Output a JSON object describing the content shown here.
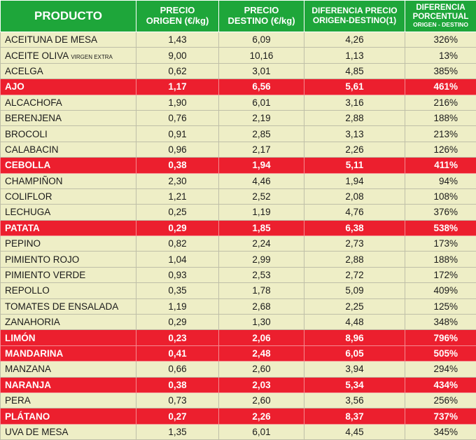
{
  "headers": {
    "producto": "PRODUCTO",
    "origen_l1": "PRECIO",
    "origen_l2": "ORIGEN (€/kg)",
    "destino_l1": "PRECIO",
    "destino_l2": "DESTINO (€/kg)",
    "diferencia_l1": "DIFERENCIA PRECIO",
    "diferencia_l2": "ORIGEN-DESTINO(1)",
    "porcentual_l1": "DIFERENCIA",
    "porcentual_l2": "PORCENTUAL",
    "porcentual_l3": "ORIGEN - DESTINO"
  },
  "highlight_color": "#ec1f2e",
  "header_color": "#1ea63a",
  "row_color": "#eeeec6",
  "rows": [
    {
      "producto": "ACEITUNA DE MESA",
      "sub": "",
      "origen": "1,43",
      "destino": "6,09",
      "diferencia": "4,26",
      "porcentual": "326%",
      "highlight": false
    },
    {
      "producto": "ACEITE OLIVA",
      "sub": "VIRGEN EXTRA",
      "origen": "9,00",
      "destino": "10,16",
      "diferencia": "1,13",
      "porcentual": "13%",
      "highlight": false
    },
    {
      "producto": "ACELGA",
      "sub": "",
      "origen": "0,62",
      "destino": "3,01",
      "diferencia": "4,85",
      "porcentual": "385%",
      "highlight": false
    },
    {
      "producto": "AJO",
      "sub": "",
      "origen": "1,17",
      "destino": "6,56",
      "diferencia": "5,61",
      "porcentual": "461%",
      "highlight": true
    },
    {
      "producto": "ALCACHOFA",
      "sub": "",
      "origen": "1,90",
      "destino": "6,01",
      "diferencia": "3,16",
      "porcentual": "216%",
      "highlight": false
    },
    {
      "producto": "BERENJENA",
      "sub": "",
      "origen": "0,76",
      "destino": "2,19",
      "diferencia": "2,88",
      "porcentual": "188%",
      "highlight": false
    },
    {
      "producto": "BROCOLI",
      "sub": "",
      "origen": "0,91",
      "destino": "2,85",
      "diferencia": "3,13",
      "porcentual": "213%",
      "highlight": false
    },
    {
      "producto": "CALABACIN",
      "sub": "",
      "origen": "0,96",
      "destino": "2,17",
      "diferencia": "2,26",
      "porcentual": "126%",
      "highlight": false
    },
    {
      "producto": "CEBOLLA",
      "sub": "",
      "origen": "0,38",
      "destino": "1,94",
      "diferencia": "5,11",
      "porcentual": "411%",
      "highlight": true
    },
    {
      "producto": "CHAMPIÑON",
      "sub": "",
      "origen": "2,30",
      "destino": "4,46",
      "diferencia": "1,94",
      "porcentual": "94%",
      "highlight": false
    },
    {
      "producto": "COLIFLOR",
      "sub": "",
      "origen": "1,21",
      "destino": "2,52",
      "diferencia": "2,08",
      "porcentual": "108%",
      "highlight": false
    },
    {
      "producto": "LECHUGA",
      "sub": "",
      "origen": "0,25",
      "destino": "1,19",
      "diferencia": "4,76",
      "porcentual": "376%",
      "highlight": false
    },
    {
      "producto": "PATATA",
      "sub": "",
      "origen": "0,29",
      "destino": "1,85",
      "diferencia": "6,38",
      "porcentual": "538%",
      "highlight": true
    },
    {
      "producto": "PEPINO",
      "sub": "",
      "origen": "0,82",
      "destino": "2,24",
      "diferencia": "2,73",
      "porcentual": "173%",
      "highlight": false
    },
    {
      "producto": "PIMIENTO ROJO",
      "sub": "",
      "origen": "1,04",
      "destino": "2,99",
      "diferencia": "2,88",
      "porcentual": "188%",
      "highlight": false
    },
    {
      "producto": "PIMIENTO VERDE",
      "sub": "",
      "origen": "0,93",
      "destino": "2,53",
      "diferencia": "2,72",
      "porcentual": "172%",
      "highlight": false
    },
    {
      "producto": "REPOLLO",
      "sub": "",
      "origen": "0,35",
      "destino": "1,78",
      "diferencia": "5,09",
      "porcentual": "409%",
      "highlight": false
    },
    {
      "producto": "TOMATES DE ENSALADA",
      "sub": "",
      "origen": "1,19",
      "destino": "2,68",
      "diferencia": "2,25",
      "porcentual": "125%",
      "highlight": false
    },
    {
      "producto": "ZANAHORIA",
      "sub": "",
      "origen": "0,29",
      "destino": "1,30",
      "diferencia": "4,48",
      "porcentual": "348%",
      "highlight": false
    },
    {
      "producto": "LIMÓN",
      "sub": "",
      "origen": "0,23",
      "destino": "2,06",
      "diferencia": "8,96",
      "porcentual": "796%",
      "highlight": true
    },
    {
      "producto": "MANDARINA",
      "sub": "",
      "origen": "0,41",
      "destino": "2,48",
      "diferencia": "6,05",
      "porcentual": "505%",
      "highlight": true
    },
    {
      "producto": "MANZANA",
      "sub": "",
      "origen": "0,66",
      "destino": "2,60",
      "diferencia": "3,94",
      "porcentual": "294%",
      "highlight": false
    },
    {
      "producto": "NARANJA",
      "sub": "",
      "origen": "0,38",
      "destino": "2,03",
      "diferencia": "5,34",
      "porcentual": "434%",
      "highlight": true
    },
    {
      "producto": "PERA",
      "sub": "",
      "origen": "0,73",
      "destino": "2,60",
      "diferencia": "3,56",
      "porcentual": "256%",
      "highlight": false
    },
    {
      "producto": "PLÁTANO",
      "sub": "",
      "origen": "0,27",
      "destino": "2,26",
      "diferencia": "8,37",
      "porcentual": "737%",
      "highlight": true
    },
    {
      "producto": "UVA DE MESA",
      "sub": "",
      "origen": "1,35",
      "destino": "6,01",
      "diferencia": "4,45",
      "porcentual": "345%",
      "highlight": false
    }
  ]
}
